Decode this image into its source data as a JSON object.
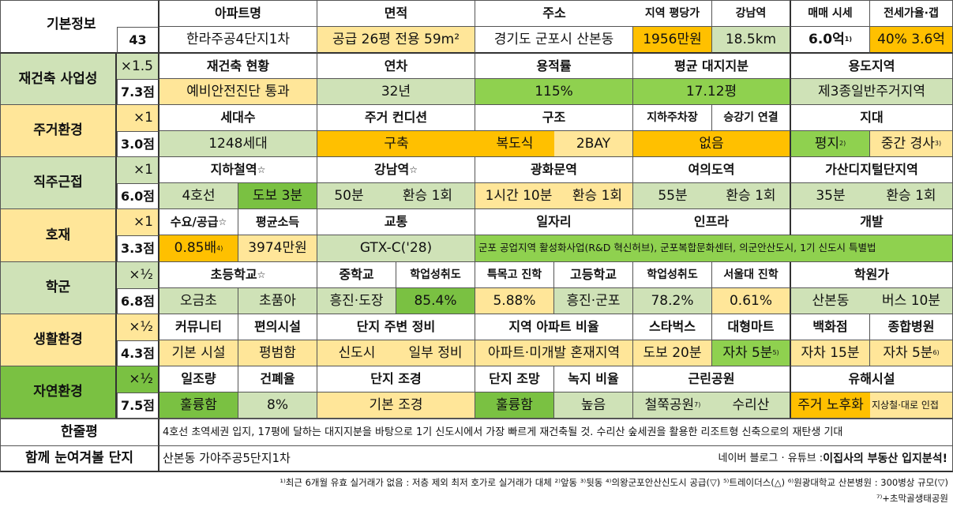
{
  "basic": {
    "title": "기본정보",
    "number": "43",
    "headers": {
      "apt": "아파트명",
      "area": "면적",
      "address": "주소",
      "price_per_pyeong": "지역 평당가",
      "gangnam": "강남역",
      "sale": "매매 시세",
      "jeonse": "전세가율·갭"
    },
    "apt": "한라주공4단지1차",
    "area": "공급 26평   전용 59m²",
    "address": "경기도 군포시 산본동",
    "price_per_pyeong": "1956만원",
    "gangnam": "18.5km",
    "sale": "6.0억",
    "sale_note": "1)",
    "jeonse": "40%  3.6억"
  },
  "sections": [
    {
      "name": "재건축 사업성",
      "weight": "×1.5",
      "score": "7.3점"
    },
    {
      "name": "주거환경",
      "weight": "×1",
      "score": "3.0점"
    },
    {
      "name": "직주근접",
      "weight": "×1",
      "score": "6.0점"
    },
    {
      "name": "호재",
      "weight": "×1",
      "score": "3.3점"
    },
    {
      "name": "학군",
      "weight": "×½",
      "score": "6.8점"
    },
    {
      "name": "생활환경",
      "weight": "×½",
      "score": "4.3점"
    },
    {
      "name": "자연환경",
      "weight": "×½",
      "score": "7.5점"
    }
  ],
  "rebuild": {
    "h": [
      "재건축 현황",
      "연차",
      "용적률",
      "평균 대지지분",
      "용도지역"
    ],
    "v": [
      "예비안전진단 통과",
      "32년",
      "115%",
      "17.12평",
      "제3종일반주거지역"
    ]
  },
  "living": {
    "h": [
      "세대수",
      "주거 컨디션",
      "구조",
      "지하주차장",
      "승강기 연결",
      "지대"
    ],
    "v": [
      "1248세대",
      "구축",
      "복도식",
      "2BAY",
      "없음",
      "평지",
      "중간 경사"
    ],
    "notes": [
      "2)",
      "3)"
    ]
  },
  "commute": {
    "h": [
      "지하철역",
      "강남역",
      "광화문역",
      "여의도역",
      "가산디지털단지역"
    ],
    "v": [
      "4호선",
      "도보 3분",
      "50분",
      "환승 1회",
      "1시간 10분",
      "환승 1회",
      "55분",
      "환승 1회",
      "35분",
      "환승 1회"
    ],
    "star": "☆"
  },
  "boon": {
    "h": [
      "수요/공급",
      "평균소득",
      "교통",
      "일자리",
      "인프라",
      "개발"
    ],
    "v": [
      "0.85배",
      "3974만원",
      "GTX-C('28)"
    ],
    "v_note": "4)",
    "long": "군포 공업지역 활성화사업(R&D 혁신허브), 군포복합문화센터, 의군안산도시, 1기 신도시 특별법"
  },
  "school": {
    "h": [
      "초등학교",
      "중학교",
      "학업성취도",
      "특목고 진학",
      "고등학교",
      "학업성취도",
      "서울대 진학",
      "학원가"
    ],
    "v": [
      "오금초",
      "초품아",
      "흥진·도장",
      "85.4%",
      "5.88%",
      "흥진·군포",
      "78.2%",
      "0.61%",
      "산본동",
      "버스 10분"
    ]
  },
  "life": {
    "h": [
      "커뮤니티",
      "편의시설",
      "단지 주변 정비",
      "지역 아파트 비율",
      "스타벅스",
      "대형마트",
      "백화점",
      "종합병원"
    ],
    "v": [
      "기본 시설",
      "평범함",
      "신도시",
      "일부 정비",
      "아파트·미개발 혼재지역",
      "도보 20분",
      "자차 5분",
      "자차 15분",
      "자차 5분"
    ],
    "notes": [
      "5)",
      "6)"
    ]
  },
  "nature": {
    "h": [
      "일조량",
      "건폐율",
      "단지 조경",
      "단지 조망",
      "녹지 비율",
      "근린공원",
      "유해시설"
    ],
    "v": [
      "훌륭함",
      "8%",
      "기본 조경",
      "훌륭함",
      "높음",
      "철쭉공원",
      "수리산",
      "주거 노후화",
      "지상철·대로 인접"
    ],
    "note": "7)"
  },
  "summary": {
    "label": "한줄평",
    "text": "4호선 초역세권 입지, 17평에 달하는 대지지분을 바탕으로 1기 신도시에서 가장 빠르게 재건축될 것. 수리산 숲세권을 활용한 리조트형 신축으로의 재탄생 기대"
  },
  "compare": {
    "label": "함께 눈여겨볼 단지",
    "text": "산본동 가야주공5단지1차",
    "source": "네이버 블로그 · 유튜브 : ",
    "source_bold": "이집사의 부동산 입지분석!"
  },
  "footnotes": {
    "line1": "¹⁾최근 6개월 유효 실거래가 없음 : 저층 제외 최저 호가로 실거래가 대체 ²⁾앞동 ³⁾뒷동 ⁴⁾의왕군포안산신도시 공급(▽) ⁵⁾트레이더스(△) ⁶⁾원광대학교 산본병원 : 300병상 규모(▽)",
    "line2": "⁷⁾+초막골생태공원"
  },
  "colors": {
    "light_green": "#cfe2b7",
    "green": "#8fd14f",
    "dark_green": "#7ac142",
    "light_yellow": "#ffe699",
    "orange": "#ffc000"
  }
}
